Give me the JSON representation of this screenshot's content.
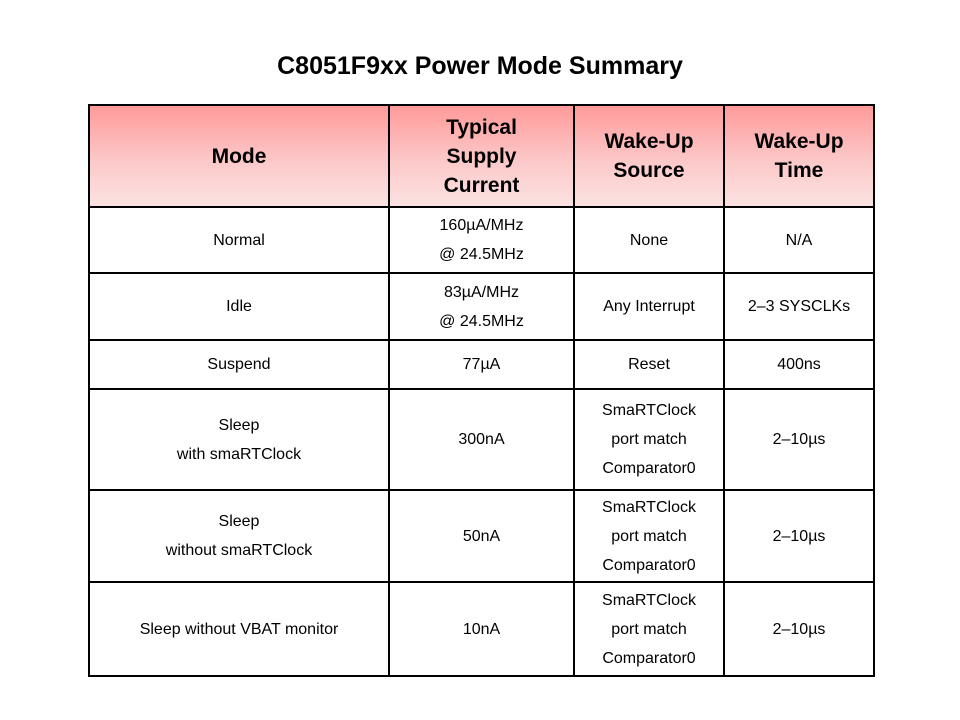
{
  "title": "C8051F9xx Power Mode Summary",
  "table": {
    "headers": [
      [
        "Mode"
      ],
      [
        "Typical",
        "Supply",
        "Current"
      ],
      [
        "Wake-Up",
        "Source"
      ],
      [
        "Wake-Up",
        "Time"
      ]
    ],
    "rows": [
      {
        "mode": [
          "Normal"
        ],
        "current": [
          "160µA/MHz",
          "@ 24.5MHz"
        ],
        "source": [
          "None"
        ],
        "time": [
          "N/A"
        ]
      },
      {
        "mode": [
          "Idle"
        ],
        "current": [
          "83µA/MHz",
          "@ 24.5MHz"
        ],
        "source": [
          "Any Interrupt"
        ],
        "time": [
          "2–3 SYSCLKs"
        ]
      },
      {
        "mode": [
          "Suspend"
        ],
        "current": [
          "77µA"
        ],
        "source": [
          "Reset"
        ],
        "time": [
          "400ns"
        ]
      },
      {
        "mode": [
          "Sleep",
          "with smaRTClock"
        ],
        "current": [
          "300nA"
        ],
        "source": [
          "SmaRTClock",
          "port match",
          "Comparator0"
        ],
        "time": [
          "2–10µs"
        ]
      },
      {
        "mode": [
          "Sleep",
          "without smaRTClock"
        ],
        "current": [
          "50nA"
        ],
        "source": [
          "SmaRTClock",
          "port match",
          "Comparator0"
        ],
        "time": [
          "2–10µs"
        ]
      },
      {
        "mode": [
          "Sleep without VBAT monitor"
        ],
        "current": [
          "10nA"
        ],
        "source": [
          "SmaRTClock",
          "port match",
          "Comparator0"
        ],
        "time": [
          "2–10µs"
        ]
      }
    ]
  }
}
